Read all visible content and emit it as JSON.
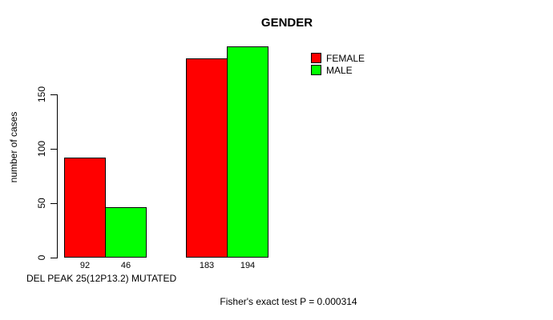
{
  "title": "GENDER",
  "footer": "Fisher's exact test P = 0.000314",
  "colors": {
    "female": "#ff0000",
    "male": "#00ff00",
    "axis": "#000000",
    "background": "#ffffff"
  },
  "chart_data": {
    "type": "bar",
    "title": "GENDER",
    "xlabel": "DEL PEAK 25(12P13.2) MUTATED",
    "ylabel": "number of cases",
    "yticks": [
      0,
      50,
      100,
      150
    ],
    "ylim": [
      0,
      200
    ],
    "grid": false,
    "legend_position": "top-right",
    "categories": [
      "DEL PEAK 25(12P13.2) MUTATED",
      ""
    ],
    "series": [
      {
        "name": "FEMALE",
        "color": "#ff0000",
        "values": [
          92,
          183
        ]
      },
      {
        "name": "MALE",
        "color": "#00ff00",
        "values": [
          46,
          194
        ]
      }
    ],
    "bar_value_labels": [
      [
        92,
        46
      ],
      [
        183,
        194
      ]
    ],
    "footer": "Fisher's exact test P = 0.000314"
  }
}
